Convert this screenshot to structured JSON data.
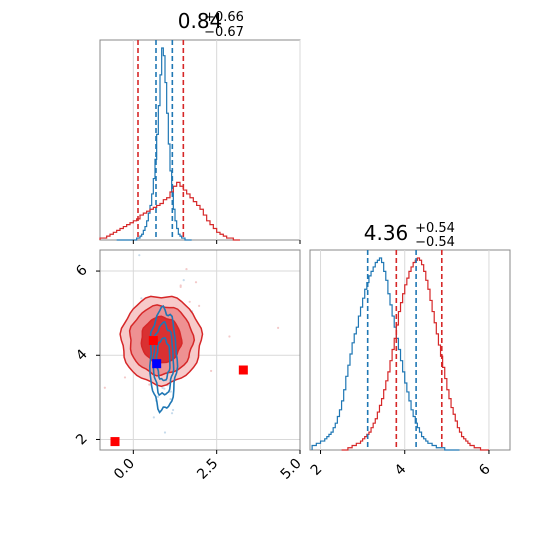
{
  "chart_data": [
    {
      "panel": "marginal-x",
      "type": "histogram",
      "title": {
        "value": "0.84",
        "plus": "+0.66",
        "minus": "−0.67"
      },
      "xlim": [
        -1.0,
        5.0
      ],
      "ticks": [
        0.0,
        2.5,
        5.0
      ],
      "grid": true,
      "series": [
        {
          "color": "#1f77b4",
          "quantiles": [
            0.68,
            1.17
          ],
          "bins_start": -0.5,
          "bin_width": 0.05,
          "density": [
            0,
            0,
            0,
            0,
            0,
            0,
            0,
            0,
            0,
            0,
            0,
            0,
            0.01,
            0.01,
            0.02,
            0.03,
            0.05,
            0.07,
            0.1,
            0.14,
            0.18,
            0.24,
            0.32,
            0.42,
            0.55,
            0.7,
            0.86,
            1.0,
            0.96,
            0.82,
            0.66,
            0.5,
            0.36,
            0.25,
            0.16,
            0.1,
            0.06,
            0.03,
            0.02,
            0.01,
            0.01,
            0,
            0,
            0,
            0
          ]
        },
        {
          "color": "#d62728",
          "quantiles": [
            0.14,
            1.5
          ],
          "bins_start": -1.0,
          "bin_width": 0.1,
          "density": [
            0.01,
            0.01,
            0.02,
            0.03,
            0.04,
            0.05,
            0.06,
            0.07,
            0.08,
            0.09,
            0.1,
            0.11,
            0.13,
            0.14,
            0.15,
            0.16,
            0.17,
            0.18,
            0.19,
            0.21,
            0.22,
            0.25,
            0.28,
            0.3,
            0.28,
            0.26,
            0.24,
            0.22,
            0.2,
            0.18,
            0.16,
            0.13,
            0.1,
            0.08,
            0.06,
            0.04,
            0.03,
            0.02,
            0.01,
            0.01,
            0,
            0
          ]
        }
      ]
    },
    {
      "panel": "marginal-y",
      "type": "histogram",
      "title": {
        "value": "4.36",
        "plus": "+0.54",
        "minus": "−0.54"
      },
      "xlim": [
        1.75,
        6.5
      ],
      "ticks": [
        2,
        4,
        6
      ],
      "grid": true,
      "series": [
        {
          "color": "#1f77b4",
          "quantiles": [
            3.12,
            4.27
          ],
          "bins_start": 1.8,
          "bin_width": 0.05,
          "density": [
            0.02,
            0.02,
            0.03,
            0.03,
            0.04,
            0.04,
            0.05,
            0.06,
            0.07,
            0.08,
            0.1,
            0.12,
            0.15,
            0.18,
            0.22,
            0.27,
            0.33,
            0.38,
            0.43,
            0.48,
            0.52,
            0.55,
            0.6,
            0.64,
            0.68,
            0.72,
            0.75,
            0.78,
            0.8,
            0.82,
            0.84,
            0.85,
            0.86,
            0.84,
            0.8,
            0.76,
            0.7,
            0.65,
            0.6,
            0.55,
            0.5,
            0.45,
            0.4,
            0.35,
            0.3,
            0.26,
            0.22,
            0.18,
            0.15,
            0.12,
            0.1,
            0.08,
            0.06,
            0.05,
            0.04,
            0.03,
            0.03,
            0.02,
            0.02,
            0.01,
            0.01,
            0.01,
            0.01,
            0,
            0,
            0,
            0,
            0,
            0,
            0
          ]
        },
        {
          "color": "#d62728",
          "quantiles": [
            3.8,
            4.88
          ],
          "bins_start": 2.5,
          "bin_width": 0.05,
          "density": [
            0,
            0,
            0,
            0.01,
            0.01,
            0.02,
            0.02,
            0.03,
            0.03,
            0.04,
            0.05,
            0.06,
            0.07,
            0.08,
            0.1,
            0.12,
            0.14,
            0.17,
            0.2,
            0.23,
            0.27,
            0.31,
            0.35,
            0.4,
            0.45,
            0.5,
            0.56,
            0.62,
            0.66,
            0.7,
            0.74,
            0.77,
            0.8,
            0.82,
            0.84,
            0.85,
            0.86,
            0.85,
            0.83,
            0.8,
            0.76,
            0.72,
            0.67,
            0.62,
            0.57,
            0.52,
            0.47,
            0.42,
            0.37,
            0.32,
            0.27,
            0.23,
            0.19,
            0.16,
            0.13,
            0.1,
            0.08,
            0.06,
            0.05,
            0.04,
            0.03,
            0.02,
            0.02,
            0.01,
            0.01,
            0.01,
            0,
            0,
            0,
            0
          ]
        }
      ]
    },
    {
      "panel": "joint",
      "type": "contour",
      "xlim": [
        -1.0,
        5.0
      ],
      "ylim": [
        1.75,
        6.5
      ],
      "xticks": [
        0.0,
        2.5,
        5.0
      ],
      "yticks": [
        2,
        4,
        6
      ],
      "grid": true,
      "series": [
        {
          "color": "#d62728",
          "filled": true,
          "center": [
            0.84,
            4.36
          ],
          "levels": [
            {
              "rx": 0.6,
              "ry": 0.55,
              "fill": "#d62728"
            },
            {
              "rx": 0.95,
              "ry": 0.82,
              "fill": "#ec8b8c"
            },
            {
              "rx": 1.2,
              "ry": 1.05,
              "fill": "#f6c4c4"
            }
          ]
        },
        {
          "color": "#1f77b4",
          "filled": false,
          "center": [
            0.9,
            3.9
          ],
          "levels": [
            {
              "rx": 0.2,
              "ry": 0.5
            },
            {
              "rx": 0.3,
              "ry": 0.85
            },
            {
              "rx": 0.4,
              "ry": 1.2
            }
          ]
        }
      ],
      "markers": [
        {
          "x": 0.6,
          "y": 4.35,
          "color": "#ff0000"
        },
        {
          "x": 0.7,
          "y": 3.8,
          "color": "#0000ff"
        },
        {
          "x": 3.3,
          "y": 3.65,
          "color": "#ff0000"
        },
        {
          "x": -0.55,
          "y": 1.95,
          "color": "#ff0000"
        }
      ]
    }
  ]
}
